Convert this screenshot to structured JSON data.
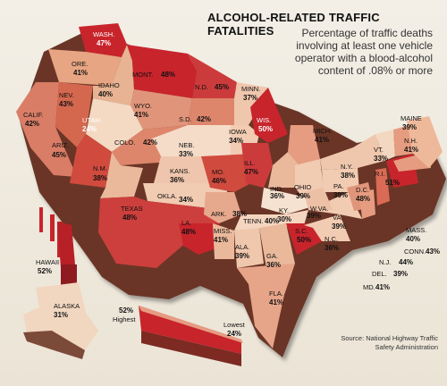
{
  "header": {
    "title": "ALCOHOL-RELATED TRAFFIC FATALITIES",
    "subtitle": "Percentage of traffic deaths involving at least one vehicle operator with a blood-alcohol content of .08% or more"
  },
  "source": "Source: National Highway Traffic Safety Administration",
  "legend": {
    "high_value": "52%",
    "high_label": "Highest",
    "low_label": "Lowest",
    "low_value": "24%"
  },
  "colors": {
    "high": "#c8242c",
    "mid": "#d9705a",
    "low": "#f1cdb3",
    "side_shadow": "#5a2a22"
  },
  "states": [
    {
      "abbr": "WASH.",
      "value": "47%"
    },
    {
      "abbr": "ORE.",
      "value": "41%"
    },
    {
      "abbr": "CALIF.",
      "value": "42%"
    },
    {
      "abbr": "NEV.",
      "value": "43%"
    },
    {
      "abbr": "IDAHO",
      "value": "40%"
    },
    {
      "abbr": "MONT.",
      "value": "48%"
    },
    {
      "abbr": "WYO.",
      "value": "41%"
    },
    {
      "abbr": "UTAH",
      "value": "24%"
    },
    {
      "abbr": "ARIZ.",
      "value": "45%"
    },
    {
      "abbr": "COLO.",
      "value": "42%"
    },
    {
      "abbr": "N.M.",
      "value": "38%"
    },
    {
      "abbr": "N.D.",
      "value": "45%"
    },
    {
      "abbr": "S.D.",
      "value": "42%"
    },
    {
      "abbr": "NEB.",
      "value": "33%"
    },
    {
      "abbr": "KANS.",
      "value": "36%"
    },
    {
      "abbr": "OKLA.",
      "value": "34%"
    },
    {
      "abbr": "TEXAS",
      "value": "48%"
    },
    {
      "abbr": "MINN.",
      "value": "37%"
    },
    {
      "abbr": "IOWA",
      "value": "34%"
    },
    {
      "abbr": "MO.",
      "value": "46%"
    },
    {
      "abbr": "ARK.",
      "value": "38%"
    },
    {
      "abbr": "LA.",
      "value": "48%"
    },
    {
      "abbr": "WIS.",
      "value": "50%"
    },
    {
      "abbr": "ILL.",
      "value": "47%"
    },
    {
      "abbr": "MICH.",
      "value": "41%"
    },
    {
      "abbr": "IND.",
      "value": "36%"
    },
    {
      "abbr": "OHIO",
      "value": "39%"
    },
    {
      "abbr": "KY.",
      "value": "30%"
    },
    {
      "abbr": "TENN.",
      "value": "40%"
    },
    {
      "abbr": "MISS.",
      "value": "41%"
    },
    {
      "abbr": "ALA.",
      "value": "39%"
    },
    {
      "abbr": "GA.",
      "value": "36%"
    },
    {
      "abbr": "FLA.",
      "value": "41%"
    },
    {
      "abbr": "S.C.",
      "value": "50%"
    },
    {
      "abbr": "N.C.",
      "value": "36%"
    },
    {
      "abbr": "VA.",
      "value": "39%"
    },
    {
      "abbr": "W.VA.",
      "value": "39%"
    },
    {
      "abbr": "PA.",
      "value": "39%"
    },
    {
      "abbr": "N.Y.",
      "value": "38%"
    },
    {
      "abbr": "D.C.",
      "value": "48%"
    },
    {
      "abbr": "MD.",
      "value": "41%"
    },
    {
      "abbr": "DEL.",
      "value": "39%"
    },
    {
      "abbr": "N.J.",
      "value": "44%"
    },
    {
      "abbr": "CONN.",
      "value": "43%"
    },
    {
      "abbr": "R.I.",
      "value": "51%"
    },
    {
      "abbr": "MASS.",
      "value": "40%"
    },
    {
      "abbr": "VT.",
      "value": "33%"
    },
    {
      "abbr": "N.H.",
      "value": "41%"
    },
    {
      "abbr": "MAINE",
      "value": "39%"
    },
    {
      "abbr": "HAWAII",
      "value": "52%"
    },
    {
      "abbr": "ALASKA",
      "value": "31%"
    }
  ]
}
